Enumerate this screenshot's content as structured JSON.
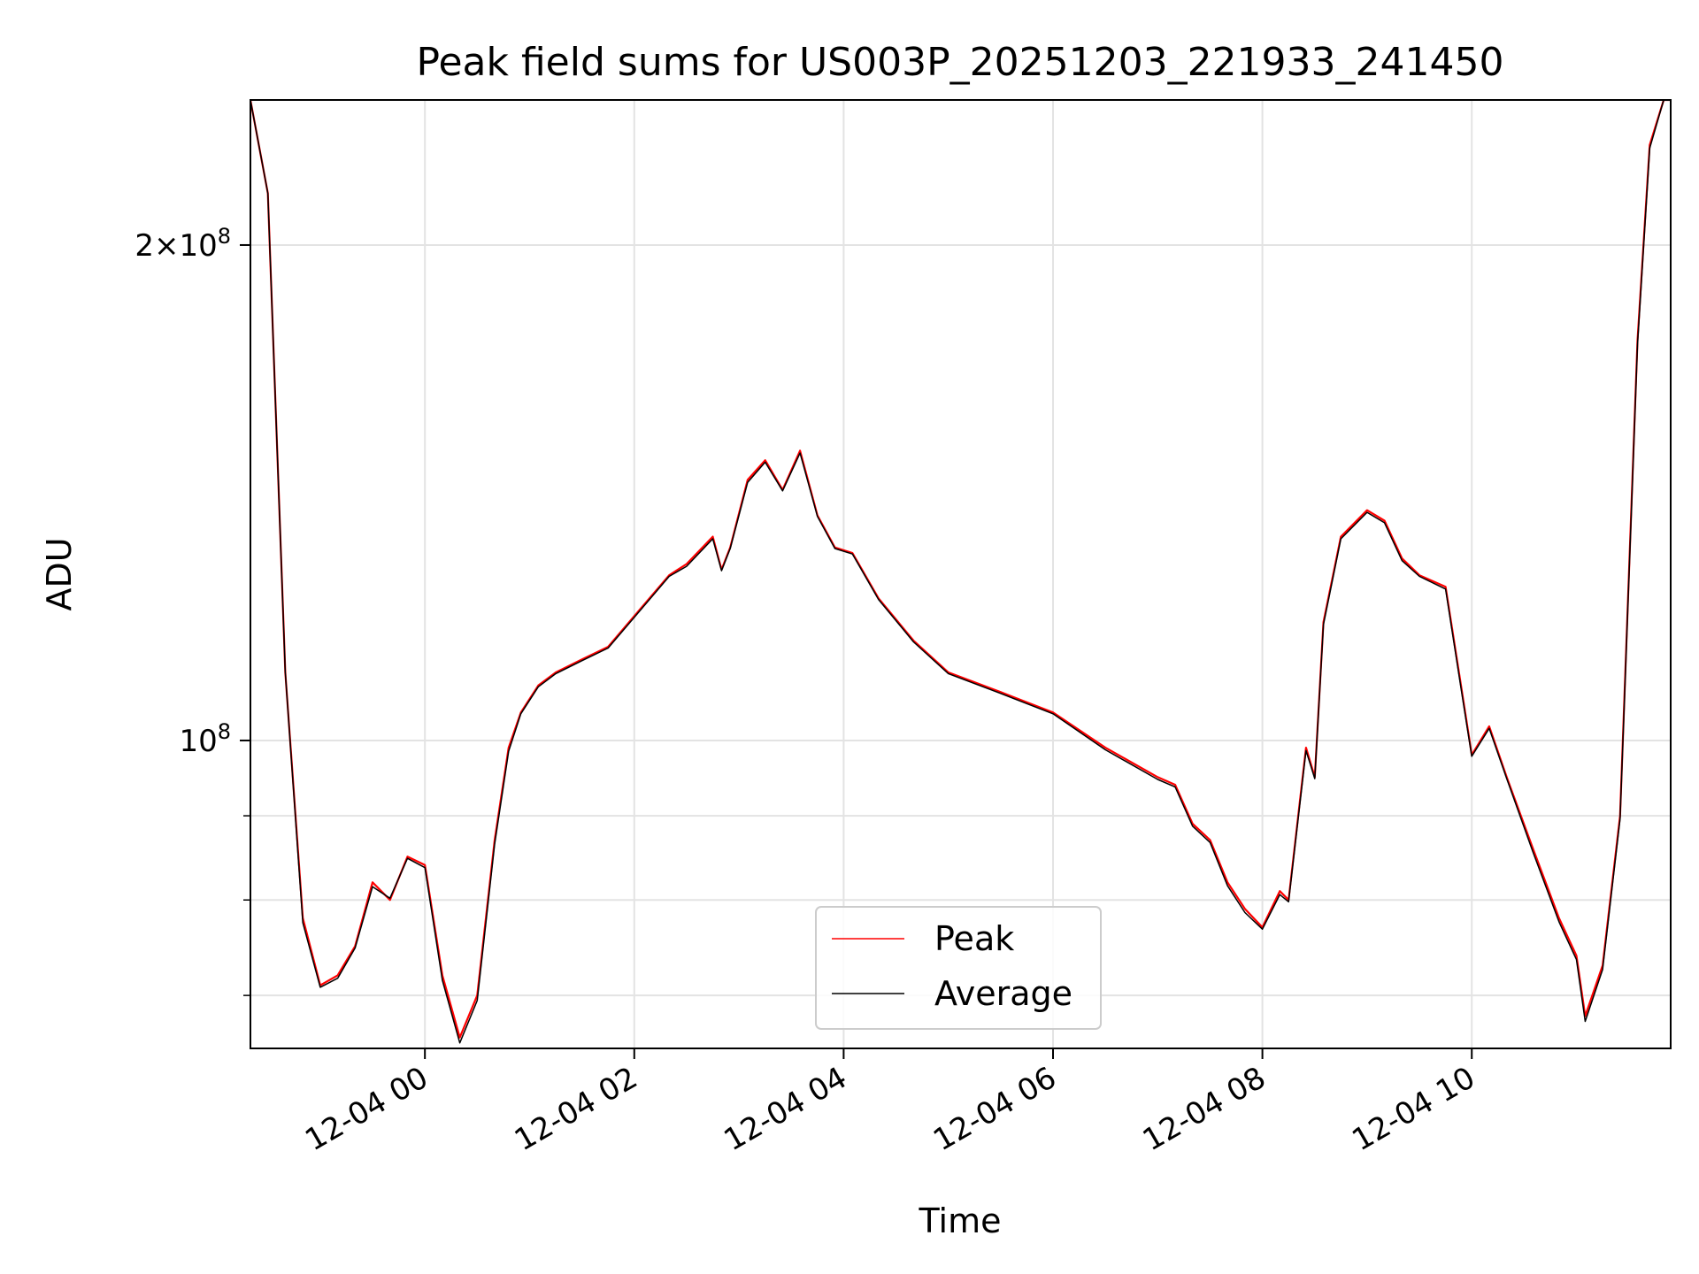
{
  "chart_data": {
    "type": "line",
    "title": "Peak field sums for US003P_20251203_221933_241450",
    "xlabel": "Time",
    "ylabel": "ADU",
    "y_scale": "log",
    "ylim": [
      65000000,
      245000000
    ],
    "xlim": [
      "2025-12-03 22:20",
      "2025-12-04 11:54"
    ],
    "grid": true,
    "legend_position": "lower-center",
    "x_ticks": [
      "2025-12-04 00:00",
      "2025-12-04 02:00",
      "2025-12-04 04:00",
      "2025-12-04 06:00",
      "2025-12-04 08:00",
      "2025-12-04 10:00"
    ],
    "x_tick_labels": [
      "12-04 00",
      "12-04 02",
      "12-04 04",
      "12-04 06",
      "12-04 08",
      "12-04 10"
    ],
    "y_major_ticks": [
      100000000,
      200000000
    ],
    "y_tick_labels": {
      "2e8": {
        "base": "2×10",
        "exp": "8"
      },
      "1e8": {
        "base": "10",
        "exp": "8"
      }
    },
    "y_minor_ticks": [
      70000000,
      80000000,
      90000000
    ],
    "series": [
      {
        "name": "Peak",
        "color": "#ff0000",
        "x": [
          "2025-12-03 22:20",
          "2025-12-03 22:30",
          "2025-12-03 22:40",
          "2025-12-03 22:50",
          "2025-12-03 23:00",
          "2025-12-03 23:10",
          "2025-12-03 23:20",
          "2025-12-03 23:30",
          "2025-12-03 23:40",
          "2025-12-03 23:50",
          "2025-12-04 00:00",
          "2025-12-04 00:10",
          "2025-12-04 00:20",
          "2025-12-04 00:30",
          "2025-12-04 00:40",
          "2025-12-04 00:48",
          "2025-12-04 00:55",
          "2025-12-04 01:05",
          "2025-12-04 01:15",
          "2025-12-04 01:30",
          "2025-12-04 01:45",
          "2025-12-04 02:00",
          "2025-12-04 02:20",
          "2025-12-04 02:30",
          "2025-12-04 02:45",
          "2025-12-04 02:50",
          "2025-12-04 02:55",
          "2025-12-04 03:05",
          "2025-12-04 03:15",
          "2025-12-04 03:25",
          "2025-12-04 03:35",
          "2025-12-04 03:45",
          "2025-12-04 03:55",
          "2025-12-04 04:05",
          "2025-12-04 04:20",
          "2025-12-04 04:40",
          "2025-12-04 05:00",
          "2025-12-04 05:30",
          "2025-12-04 06:00",
          "2025-12-04 06:30",
          "2025-12-04 07:00",
          "2025-12-04 07:10",
          "2025-12-04 07:20",
          "2025-12-04 07:30",
          "2025-12-04 07:40",
          "2025-12-04 07:50",
          "2025-12-04 08:00",
          "2025-12-04 08:10",
          "2025-12-04 08:15",
          "2025-12-04 08:25",
          "2025-12-04 08:30",
          "2025-12-04 08:35",
          "2025-12-04 08:45",
          "2025-12-04 09:00",
          "2025-12-04 09:10",
          "2025-12-04 09:20",
          "2025-12-04 09:30",
          "2025-12-04 09:45",
          "2025-12-04 09:55",
          "2025-12-04 10:00",
          "2025-12-04 10:10",
          "2025-12-04 10:20",
          "2025-12-04 10:35",
          "2025-12-04 10:50",
          "2025-12-04 11:00",
          "2025-12-04 11:05",
          "2025-12-04 11:15",
          "2025-12-04 11:25",
          "2025-12-04 11:35",
          "2025-12-04 11:42",
          "2025-12-04 11:50",
          "2025-12-04 11:54"
        ],
        "y": [
          245000000,
          215000000,
          110000000,
          78000000,
          71000000,
          72000000,
          75000000,
          82000000,
          80000000,
          85000000,
          84000000,
          72000000,
          66000000,
          70000000,
          87000000,
          99000000,
          104000000,
          108000000,
          110000000,
          112000000,
          114000000,
          119000000,
          126000000,
          128000000,
          133000000,
          127000000,
          131000000,
          144000000,
          148000000,
          142000000,
          150000000,
          137000000,
          131000000,
          130000000,
          122000000,
          115000000,
          110000000,
          107000000,
          104000000,
          99000000,
          95000000,
          94000000,
          89000000,
          87000000,
          82000000,
          79000000,
          77000000,
          81000000,
          80000000,
          99000000,
          95000000,
          118000000,
          133000000,
          138000000,
          136000000,
          129000000,
          126000000,
          124000000,
          106000000,
          98000000,
          102000000,
          95000000,
          86000000,
          78000000,
          74000000,
          68000000,
          73000000,
          90000000,
          175000000,
          230000000,
          245000000,
          245000000
        ]
      },
      {
        "name": "Average",
        "color": "#000000",
        "x": [
          "2025-12-03 22:20",
          "2025-12-03 22:30",
          "2025-12-03 22:40",
          "2025-12-03 22:50",
          "2025-12-03 23:00",
          "2025-12-03 23:10",
          "2025-12-03 23:20",
          "2025-12-03 23:30",
          "2025-12-03 23:40",
          "2025-12-03 23:50",
          "2025-12-04 00:00",
          "2025-12-04 00:10",
          "2025-12-04 00:20",
          "2025-12-04 00:30",
          "2025-12-04 00:40",
          "2025-12-04 00:48",
          "2025-12-04 00:55",
          "2025-12-04 01:05",
          "2025-12-04 01:15",
          "2025-12-04 01:30",
          "2025-12-04 01:45",
          "2025-12-04 02:00",
          "2025-12-04 02:20",
          "2025-12-04 02:30",
          "2025-12-04 02:45",
          "2025-12-04 02:50",
          "2025-12-04 02:55",
          "2025-12-04 03:05",
          "2025-12-04 03:15",
          "2025-12-04 03:25",
          "2025-12-04 03:35",
          "2025-12-04 03:45",
          "2025-12-04 03:55",
          "2025-12-04 04:05",
          "2025-12-04 04:20",
          "2025-12-04 04:40",
          "2025-12-04 05:00",
          "2025-12-04 05:30",
          "2025-12-04 06:00",
          "2025-12-04 06:30",
          "2025-12-04 07:00",
          "2025-12-04 07:10",
          "2025-12-04 07:20",
          "2025-12-04 07:30",
          "2025-12-04 07:40",
          "2025-12-04 07:50",
          "2025-12-04 08:00",
          "2025-12-04 08:10",
          "2025-12-04 08:15",
          "2025-12-04 08:25",
          "2025-12-04 08:30",
          "2025-12-04 08:35",
          "2025-12-04 08:45",
          "2025-12-04 09:00",
          "2025-12-04 09:10",
          "2025-12-04 09:20",
          "2025-12-04 09:30",
          "2025-12-04 09:45",
          "2025-12-04 09:55",
          "2025-12-04 10:00",
          "2025-12-04 10:10",
          "2025-12-04 10:20",
          "2025-12-04 10:35",
          "2025-12-04 10:50",
          "2025-12-04 11:00",
          "2025-12-04 11:05",
          "2025-12-04 11:15",
          "2025-12-04 11:25",
          "2025-12-04 11:35",
          "2025-12-04 11:42",
          "2025-12-04 11:50",
          "2025-12-04 11:54"
        ],
        "y": [
          245000000,
          215000000,
          110000000,
          77500000,
          70800000,
          71700000,
          74800000,
          81500000,
          80200000,
          84800000,
          83700000,
          71500000,
          65500000,
          69500000,
          86500000,
          98500000,
          103800000,
          107800000,
          109800000,
          111800000,
          113800000,
          118800000,
          125800000,
          127600000,
          132600000,
          126800000,
          130800000,
          143500000,
          147600000,
          141800000,
          149500000,
          136800000,
          130800000,
          129800000,
          121800000,
          114800000,
          109800000,
          106800000,
          103800000,
          98700000,
          94700000,
          93700000,
          88700000,
          86700000,
          81600000,
          78600000,
          76800000,
          80600000,
          79800000,
          98600000,
          94800000,
          117600000,
          132600000,
          137600000,
          135600000,
          128600000,
          125800000,
          123600000,
          105600000,
          97800000,
          101700000,
          94800000,
          85600000,
          77600000,
          73600000,
          67500000,
          72600000,
          89600000,
          174000000,
          229000000,
          245000000,
          245000000
        ]
      }
    ]
  }
}
